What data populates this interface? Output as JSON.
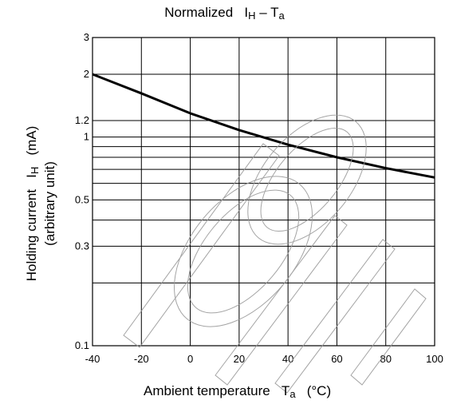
{
  "chart_data": {
    "type": "line",
    "title_main": "Normalized",
    "title_sym": "I",
    "title_sub": "H",
    "title_rest": "– T",
    "title_rest_sub": "a",
    "xlabel_main": "Ambient temperature",
    "xlabel_sym": "T",
    "xlabel_sub": "a",
    "xlabel_unit": "(°C)",
    "ylabel_line1_main": "Holding current",
    "ylabel_line1_sym": "I",
    "ylabel_line1_sub": "H",
    "ylabel_line1_unit": "(mA)",
    "ylabel_line2": "(arbitrary unit)",
    "xlim": [
      -40,
      100
    ],
    "ylim": [
      0.1,
      3
    ],
    "y_scale": "log",
    "x_ticks": [
      -40,
      -20,
      0,
      20,
      40,
      60,
      80,
      100
    ],
    "y_tick_labels": [
      {
        "value": 3,
        "label": "3"
      },
      {
        "value": 2,
        "label": "2"
      },
      {
        "value": 1.2,
        "label": "1.2"
      },
      {
        "value": 1,
        "label": "1"
      },
      {
        "value": 0.5,
        "label": "0.5"
      },
      {
        "value": 0.3,
        "label": "0.3"
      },
      {
        "value": 0.1,
        "label": "0.1"
      }
    ],
    "y_gridlines": [
      3,
      2,
      1.2,
      1,
      0.9,
      0.8,
      0.7,
      0.6,
      0.5,
      0.4,
      0.3,
      0.2,
      0.1
    ],
    "grid": true,
    "series": [
      {
        "x": [
          -40,
          -20,
          0,
          20,
          40,
          60,
          80,
          100
        ],
        "y": [
          2.0,
          1.62,
          1.3,
          1.08,
          0.92,
          0.8,
          0.71,
          0.64
        ]
      }
    ]
  }
}
